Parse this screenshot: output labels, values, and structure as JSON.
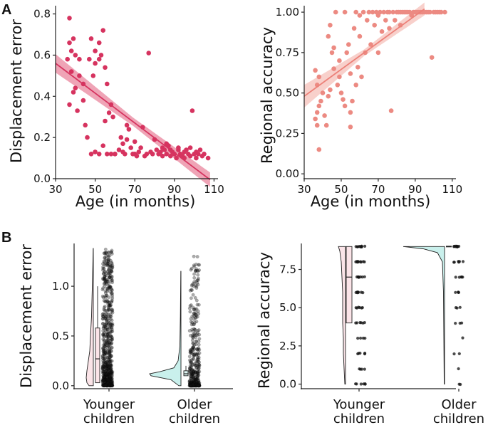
{
  "panel_labels": {
    "a": "A",
    "b": "B"
  },
  "colors": {
    "scatter_left": "#d6335f",
    "scatter_right": "#ec8a82",
    "fit_left": "#d6335f",
    "band_left": "#e9869e",
    "fit_right": "#ec8078",
    "band_right": "#f6c0ba",
    "violin_young": "#fbe4e8",
    "violin_old": "#c9f0ec",
    "box_young": "#fbe4e8",
    "box_old": "#ddf5f2",
    "points_dark": "#111111"
  },
  "chart_data": [
    {
      "id": "A-left",
      "type": "scatter",
      "xlabel": "Age (in months)",
      "ylabel": "Displacement error",
      "xlim": [
        30,
        112
      ],
      "ylim": [
        0,
        0.84
      ],
      "xticks": [
        "30",
        "50",
        "70",
        "90",
        "110"
      ],
      "yticks": [
        "0.0",
        "0.2",
        "0.4",
        "0.6",
        "0.8"
      ],
      "points": [
        [
          37,
          0.78
        ],
        [
          38,
          0.62
        ],
        [
          37,
          0.66
        ],
        [
          39,
          0.68
        ],
        [
          40,
          0.6
        ],
        [
          42,
          0.58
        ],
        [
          36,
          0.58
        ],
        [
          38,
          0.52
        ],
        [
          40,
          0.44
        ],
        [
          42,
          0.5
        ],
        [
          44,
          0.38
        ],
        [
          45,
          0.26
        ],
        [
          48,
          0.68
        ],
        [
          50,
          0.62
        ],
        [
          52,
          0.66
        ],
        [
          54,
          0.72
        ],
        [
          52,
          0.58
        ],
        [
          53,
          0.6
        ],
        [
          50,
          0.56
        ],
        [
          47,
          0.58
        ],
        [
          49,
          0.5
        ],
        [
          46,
          0.2
        ],
        [
          37,
          0.36
        ],
        [
          39,
          0.42
        ],
        [
          44,
          0.46
        ],
        [
          41,
          0.33
        ],
        [
          55,
          0.54
        ],
        [
          56,
          0.46
        ],
        [
          58,
          0.36
        ],
        [
          57,
          0.32
        ],
        [
          59,
          0.3
        ],
        [
          55,
          0.28
        ],
        [
          48,
          0.12
        ],
        [
          50,
          0.13
        ],
        [
          52,
          0.12
        ],
        [
          54,
          0.16
        ],
        [
          56,
          0.12
        ],
        [
          58,
          0.12
        ],
        [
          60,
          0.12
        ],
        [
          62,
          0.14
        ],
        [
          63,
          0.2
        ],
        [
          64,
          0.13
        ],
        [
          65,
          0.12
        ],
        [
          66,
          0.26
        ],
        [
          67,
          0.24
        ],
        [
          68,
          0.15
        ],
        [
          69,
          0.12
        ],
        [
          70,
          0.12
        ],
        [
          71,
          0.11
        ],
        [
          72,
          0.13
        ],
        [
          73,
          0.15
        ],
        [
          74,
          0.25
        ],
        [
          75,
          0.11
        ],
        [
          76,
          0.12
        ],
        [
          78,
          0.13
        ],
        [
          79,
          0.12
        ],
        [
          80,
          0.19
        ],
        [
          81,
          0.14
        ],
        [
          82,
          0.12
        ],
        [
          83,
          0.13
        ],
        [
          84,
          0.11
        ],
        [
          85,
          0.14
        ],
        [
          86,
          0.12
        ],
        [
          87,
          0.16
        ],
        [
          88,
          0.11
        ],
        [
          89,
          0.13
        ],
        [
          90,
          0.12
        ],
        [
          91,
          0.1
        ],
        [
          92,
          0.14
        ],
        [
          93,
          0.12
        ],
        [
          94,
          0.11
        ],
        [
          95,
          0.13
        ],
        [
          96,
          0.14
        ],
        [
          97,
          0.12
        ],
        [
          98,
          0.11
        ],
        [
          99,
          0.33
        ],
        [
          100,
          0.12
        ],
        [
          101,
          0.13
        ],
        [
          102,
          0.12
        ],
        [
          103,
          0.14
        ],
        [
          104,
          0.11
        ],
        [
          105,
          0.12
        ],
        [
          107,
          0.1
        ],
        [
          77,
          0.61
        ],
        [
          60,
          0.12
        ],
        [
          64,
          0.17
        ],
        [
          66,
          0.19
        ],
        [
          70,
          0.18
        ],
        [
          86,
          0.17
        ],
        [
          92,
          0.15
        ],
        [
          95,
          0.1
        ],
        [
          98,
          0.15
        ],
        [
          101,
          0.1
        ],
        [
          88,
          0.14
        ],
        [
          84,
          0.15
        ]
      ],
      "fit": {
        "x": [
          30,
          108
        ],
        "y": [
          0.56,
          -0.005
        ]
      },
      "band_halfwidth": [
        0.045,
        0.02,
        0.035
      ]
    },
    {
      "id": "A-right",
      "type": "scatter",
      "xlabel": "Age (in months)",
      "ylabel": "Regional accuracy",
      "xlim": [
        30,
        112
      ],
      "ylim": [
        -0.03,
        1.04
      ],
      "xticks": [
        "30",
        "50",
        "70",
        "90",
        "110"
      ],
      "yticks": [
        "0.00",
        "0.25",
        "0.50",
        "0.75",
        "1.00"
      ],
      "points": [
        [
          38,
          0.15
        ],
        [
          37,
          0.3
        ],
        [
          36,
          0.34
        ],
        [
          37,
          0.38
        ],
        [
          38,
          0.42
        ],
        [
          39,
          0.45
        ],
        [
          40,
          0.5
        ],
        [
          37,
          0.55
        ],
        [
          38,
          0.6
        ],
        [
          36,
          0.64
        ],
        [
          41,
          0.36
        ],
        [
          42,
          0.3
        ],
        [
          43,
          0.48
        ],
        [
          44,
          0.52
        ],
        [
          45,
          0.75
        ],
        [
          43,
          0.85
        ],
        [
          44,
          0.92
        ],
        [
          46,
          0.78
        ],
        [
          47,
          1.0
        ],
        [
          48,
          0.55
        ],
        [
          49,
          0.6
        ],
        [
          50,
          0.5
        ],
        [
          51,
          0.46
        ],
        [
          52,
          0.42
        ],
        [
          53,
          0.75
        ],
        [
          54,
          0.8
        ],
        [
          52,
          1.0
        ],
        [
          55,
          0.38
        ],
        [
          56,
          0.45
        ],
        [
          57,
          0.9
        ],
        [
          58,
          0.55
        ],
        [
          58,
          1.0
        ],
        [
          59,
          0.66
        ],
        [
          60,
          0.85
        ],
        [
          61,
          0.6
        ],
        [
          62,
          1.0
        ],
        [
          63,
          0.75
        ],
        [
          64,
          0.95
        ],
        [
          65,
          1.0
        ],
        [
          66,
          0.8
        ],
        [
          67,
          1.0
        ],
        [
          68,
          0.92
        ],
        [
          69,
          1.0
        ],
        [
          70,
          0.75
        ],
        [
          71,
          1.0
        ],
        [
          72,
          0.88
        ],
        [
          73,
          1.0
        ],
        [
          74,
          0.95
        ],
        [
          75,
          1.0
        ],
        [
          76,
          0.9
        ],
        [
          77,
          0.39
        ],
        [
          78,
          1.0
        ],
        [
          79,
          0.95
        ],
        [
          80,
          1.0
        ],
        [
          81,
          1.0
        ],
        [
          82,
          0.92
        ],
        [
          83,
          1.0
        ],
        [
          84,
          1.0
        ],
        [
          85,
          1.0
        ],
        [
          86,
          1.0
        ],
        [
          87,
          1.0
        ],
        [
          88,
          0.98
        ],
        [
          89,
          1.0
        ],
        [
          90,
          1.0
        ],
        [
          91,
          1.0
        ],
        [
          92,
          1.0
        ],
        [
          93,
          1.0
        ],
        [
          94,
          1.0
        ],
        [
          95,
          1.0
        ],
        [
          96,
          1.0
        ],
        [
          97,
          1.0
        ],
        [
          98,
          1.0
        ],
        [
          99,
          0.72
        ],
        [
          100,
          1.0
        ],
        [
          101,
          1.0
        ],
        [
          102,
          1.0
        ],
        [
          103,
          1.0
        ],
        [
          104,
          1.0
        ],
        [
          106,
          1.0
        ],
        [
          55,
          0.62
        ],
        [
          46,
          0.65
        ],
        [
          49,
          0.7
        ],
        [
          55,
          0.29
        ],
        [
          60,
          0.98
        ],
        [
          70,
          0.98
        ],
        [
          76,
          1.0
        ],
        [
          82,
          1.0
        ]
      ],
      "fit": {
        "x": [
          30,
          95
        ],
        "y": [
          0.48,
          1.02
        ]
      },
      "band_halfwidth": [
        0.07,
        0.02,
        0.04
      ]
    },
    {
      "id": "B-left",
      "type": "raincloud",
      "ylabel": "Displacement error",
      "ylim": [
        -0.03,
        1.43
      ],
      "yticks": [
        "0.0",
        "0.5",
        "1.0"
      ],
      "categories": [
        "Younger\nchildren",
        "Older\nchildren"
      ],
      "category_lines": [
        [
          "Younger",
          "children"
        ],
        [
          "Older",
          "children"
        ]
      ],
      "box": [
        {
          "q1": 0.03,
          "median": 0.27,
          "q3": 0.58,
          "whisker_high": 1.0
        },
        {
          "q1": 0.1,
          "median": 0.12,
          "q3": 0.15,
          "whisker_high": 0.2
        }
      ],
      "violin_max": [
        1.38,
        1.15
      ],
      "points_max": [
        1.38,
        1.3
      ]
    },
    {
      "id": "B-right",
      "type": "raincloud",
      "ylabel": "Regional accuracy",
      "ylim": [
        -0.3,
        9.2
      ],
      "yticks": [
        "0.0",
        "2.5",
        "5.0",
        "7.5"
      ],
      "categories": [
        "Younger\nchildren",
        "Older\nchildren"
      ],
      "category_lines": [
        [
          "Younger",
          "children"
        ],
        [
          "Older",
          "children"
        ]
      ],
      "box": [
        {
          "q1": 4.0,
          "median": 7.0,
          "q3": 9.0,
          "whisker_high": 9.0
        },
        {
          "q1": 9.0,
          "median": 9.0,
          "q3": 9.0,
          "whisker_high": 9.0
        }
      ],
      "levels": [
        0,
        1,
        2,
        3,
        4,
        5,
        6,
        7,
        8,
        9
      ]
    }
  ]
}
